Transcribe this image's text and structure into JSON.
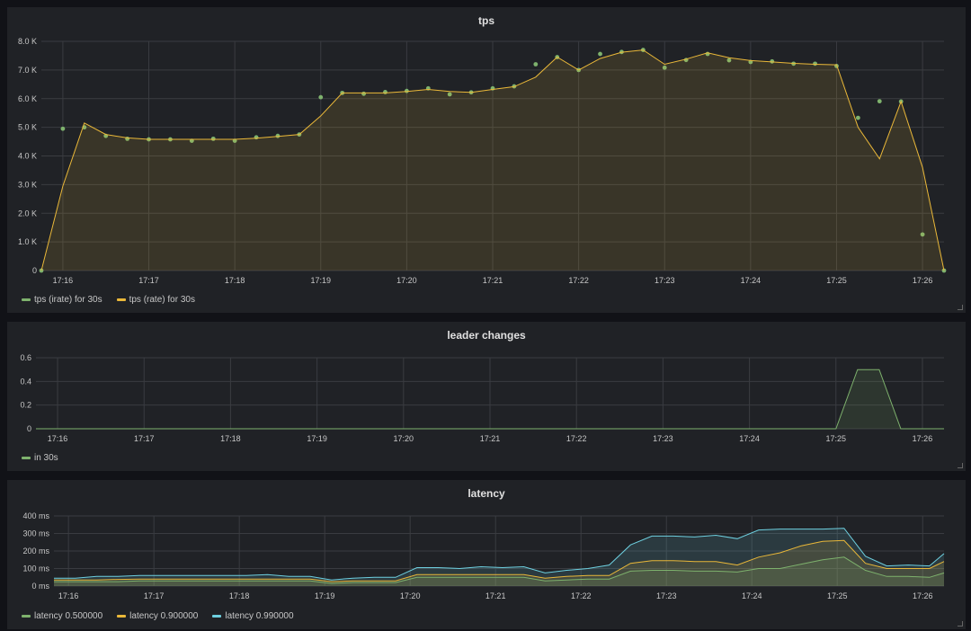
{
  "colors": {
    "green": "#7eb26d",
    "yellow": "#eab839",
    "blue": "#6ed0e0",
    "grid": "#3a3c41",
    "axis_text": "#c7c7c7"
  },
  "chart_data": [
    {
      "type": "line",
      "title": "tps",
      "x_labels": [
        "17:16",
        "17:17",
        "17:18",
        "17:19",
        "17:20",
        "17:21",
        "17:22",
        "17:23",
        "17:24",
        "17:25",
        "17:26"
      ],
      "xlim": [
        15.75,
        26.25
      ],
      "ylim": [
        0,
        8000
      ],
      "y_ticks": [
        0,
        1000,
        2000,
        3000,
        4000,
        5000,
        6000,
        7000,
        8000
      ],
      "y_tick_labels": [
        "0",
        "1.0 K",
        "2.0 K",
        "3.0 K",
        "4.0 K",
        "5.0 K",
        "6.0 K",
        "7.0 K",
        "8.0 K"
      ],
      "series": [
        {
          "name": "tps (irate) for 30s",
          "color": "#7eb26d",
          "style": "points",
          "x": [
            15.75,
            16.0,
            16.25,
            16.5,
            16.75,
            17.0,
            17.25,
            17.5,
            17.75,
            18.0,
            18.25,
            18.5,
            18.75,
            19.0,
            19.25,
            19.5,
            19.75,
            20.0,
            20.25,
            20.5,
            20.75,
            21.0,
            21.25,
            21.5,
            21.75,
            22.0,
            22.25,
            22.5,
            22.75,
            23.0,
            23.25,
            23.5,
            23.75,
            24.0,
            24.25,
            24.5,
            24.75,
            25.0,
            25.25,
            25.5,
            25.75,
            26.0,
            26.25
          ],
          "y": [
            0,
            4950,
            5000,
            4700,
            4600,
            4580,
            4580,
            4530,
            4600,
            4530,
            4650,
            4700,
            4750,
            6050,
            6200,
            6170,
            6230,
            6270,
            6360,
            6150,
            6220,
            6360,
            6430,
            7200,
            7450,
            7000,
            7560,
            7630,
            7700,
            7080,
            7350,
            7560,
            7340,
            7280,
            7300,
            7220,
            7220,
            7140,
            5330,
            5910,
            5900,
            1260,
            0
          ]
        },
        {
          "name": "tps (rate) for 30s",
          "color": "#eab839",
          "style": "line",
          "x": [
            15.75,
            16.0,
            16.25,
            16.5,
            16.75,
            17.0,
            17.25,
            17.5,
            17.75,
            18.0,
            18.25,
            18.5,
            18.75,
            19.0,
            19.25,
            19.5,
            19.75,
            20.0,
            20.25,
            20.5,
            20.75,
            21.0,
            21.25,
            21.5,
            21.75,
            22.0,
            22.25,
            22.5,
            22.75,
            23.0,
            23.25,
            23.5,
            23.75,
            24.0,
            24.25,
            24.5,
            24.75,
            25.0,
            25.25,
            25.5,
            25.75,
            26.0,
            26.25
          ],
          "y": [
            0,
            2950,
            5150,
            4750,
            4630,
            4580,
            4580,
            4580,
            4580,
            4580,
            4620,
            4680,
            4750,
            5400,
            6200,
            6200,
            6200,
            6250,
            6320,
            6250,
            6220,
            6320,
            6420,
            6750,
            7450,
            7000,
            7400,
            7620,
            7700,
            7200,
            7380,
            7600,
            7430,
            7330,
            7280,
            7230,
            7200,
            7180,
            5000,
            3900,
            5900,
            3600,
            0
          ]
        }
      ]
    },
    {
      "type": "line",
      "title": "leader changes",
      "x_labels": [
        "17:16",
        "17:17",
        "17:18",
        "17:19",
        "17:20",
        "17:21",
        "17:22",
        "17:23",
        "17:24",
        "17:25",
        "17:26"
      ],
      "xlim": [
        15.75,
        26.25
      ],
      "ylim": [
        0,
        0.6
      ],
      "y_ticks": [
        0,
        0.2,
        0.4,
        0.6
      ],
      "y_tick_labels": [
        "0",
        "0.2",
        "0.4",
        "0.6"
      ],
      "series": [
        {
          "name": "in 30s",
          "color": "#7eb26d",
          "style": "area",
          "x": [
            15.75,
            25.0,
            25.25,
            25.5,
            25.75,
            26.25
          ],
          "y": [
            0,
            0,
            0.5,
            0.5,
            0,
            0
          ]
        }
      ]
    },
    {
      "type": "line",
      "title": "latency",
      "x_labels": [
        "17:16",
        "17:17",
        "17:18",
        "17:19",
        "17:20",
        "17:21",
        "17:22",
        "17:23",
        "17:24",
        "17:25",
        "17:26"
      ],
      "xlim": [
        15.83,
        26.25
      ],
      "ylim": [
        0,
        400
      ],
      "y_ticks": [
        0,
        100,
        200,
        300,
        400
      ],
      "y_tick_labels": [
        "0 ms",
        "100 ms",
        "200 ms",
        "300 ms",
        "400 ms"
      ],
      "series": [
        {
          "name": "latency 0.500000",
          "color": "#7eb26d",
          "style": "area",
          "x": [
            15.83,
            16.08,
            16.33,
            16.58,
            16.83,
            17.08,
            17.33,
            17.58,
            17.83,
            18.08,
            18.33,
            18.58,
            18.83,
            19.08,
            19.33,
            19.58,
            19.83,
            20.08,
            20.33,
            20.58,
            20.83,
            21.08,
            21.33,
            21.58,
            21.83,
            22.08,
            22.33,
            22.58,
            22.83,
            23.08,
            23.33,
            23.58,
            23.83,
            24.08,
            24.33,
            24.58,
            24.83,
            25.08,
            25.33,
            25.58,
            25.83,
            26.08,
            26.25
          ],
          "y": [
            25,
            25,
            25,
            25,
            30,
            30,
            30,
            30,
            30,
            30,
            30,
            30,
            30,
            15,
            20,
            20,
            20,
            50,
            50,
            50,
            50,
            50,
            50,
            30,
            35,
            40,
            40,
            85,
            90,
            90,
            85,
            85,
            80,
            100,
            100,
            125,
            150,
            165,
            90,
            55,
            55,
            50,
            75
          ]
        },
        {
          "name": "latency 0.900000",
          "color": "#eab839",
          "style": "area",
          "x": [
            15.83,
            16.08,
            16.33,
            16.58,
            16.83,
            17.08,
            17.33,
            17.58,
            17.83,
            18.08,
            18.33,
            18.58,
            18.83,
            19.08,
            19.33,
            19.58,
            19.83,
            20.08,
            20.33,
            20.58,
            20.83,
            21.08,
            21.33,
            21.58,
            21.83,
            22.08,
            22.33,
            22.58,
            22.83,
            23.08,
            23.33,
            23.58,
            23.83,
            24.08,
            24.33,
            24.58,
            24.83,
            25.08,
            25.33,
            25.58,
            25.83,
            26.08,
            26.25
          ],
          "y": [
            35,
            35,
            35,
            38,
            40,
            40,
            40,
            40,
            40,
            40,
            40,
            40,
            40,
            25,
            30,
            30,
            30,
            65,
            65,
            65,
            65,
            65,
            65,
            45,
            55,
            60,
            60,
            130,
            145,
            145,
            140,
            140,
            120,
            165,
            190,
            230,
            255,
            260,
            130,
            100,
            100,
            100,
            140
          ]
        },
        {
          "name": "latency 0.990000",
          "color": "#6ed0e0",
          "style": "area",
          "x": [
            15.83,
            16.08,
            16.33,
            16.58,
            16.83,
            17.08,
            17.33,
            17.58,
            17.83,
            18.08,
            18.33,
            18.58,
            18.83,
            19.08,
            19.33,
            19.58,
            19.83,
            20.08,
            20.33,
            20.58,
            20.83,
            21.08,
            21.33,
            21.58,
            21.83,
            22.08,
            22.33,
            22.58,
            22.83,
            23.08,
            23.33,
            23.58,
            23.83,
            24.08,
            24.33,
            24.58,
            24.83,
            25.08,
            25.33,
            25.58,
            25.83,
            26.08,
            26.25
          ],
          "y": [
            45,
            45,
            55,
            55,
            60,
            60,
            60,
            60,
            60,
            60,
            65,
            55,
            55,
            35,
            45,
            50,
            50,
            105,
            105,
            100,
            110,
            105,
            110,
            75,
            90,
            100,
            120,
            235,
            285,
            285,
            280,
            290,
            270,
            320,
            325,
            325,
            325,
            330,
            170,
            115,
            120,
            115,
            185
          ]
        }
      ]
    }
  ]
}
